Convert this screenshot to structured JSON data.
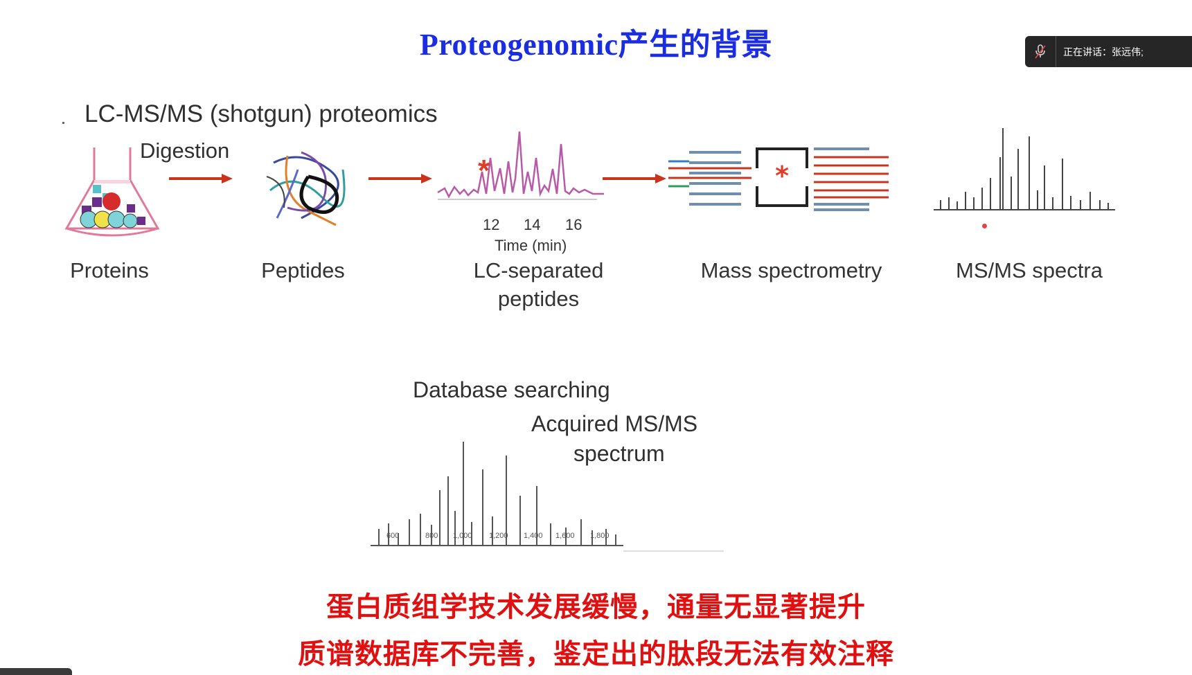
{
  "slide": {
    "title": "Proteogenomic产生的背景",
    "workflow_heading": "LC-MS/MS (shotgun) proteomics",
    "digestion_label": "Digestion",
    "stages": [
      {
        "label": "Proteins"
      },
      {
        "label": "Peptides"
      },
      {
        "label": "LC-separated\npeptides"
      },
      {
        "label": "Mass spectrometry"
      },
      {
        "label": "MS/MS spectra"
      }
    ],
    "lc_ticks": [
      "12",
      "14",
      "16"
    ],
    "lc_axis_label": "Time (min)",
    "db_heading": "Database searching",
    "acquired_label_line1": "Acquired MS/MS",
    "acquired_label_line2": "spectrum",
    "spectrum_ticks": [
      "600",
      "800",
      "1,000",
      "1,200",
      "1,400",
      "1,600",
      "1,800"
    ],
    "conclusion_line1": "蛋白质组学技术发展缓慢，通量无显著提升",
    "conclusion_line2": "质谱数据库不完善，鉴定出的肽段无法有效注释"
  },
  "meeting": {
    "speaking_text": "正在讲话：张远伟;",
    "mic_icon": "mic-muted-icon"
  },
  "colors": {
    "title": "#1a2de0",
    "conclusion": "#e01010",
    "arrow": "#c8341c",
    "lc_trace": "#b75aa8",
    "overlay": "#262626"
  }
}
